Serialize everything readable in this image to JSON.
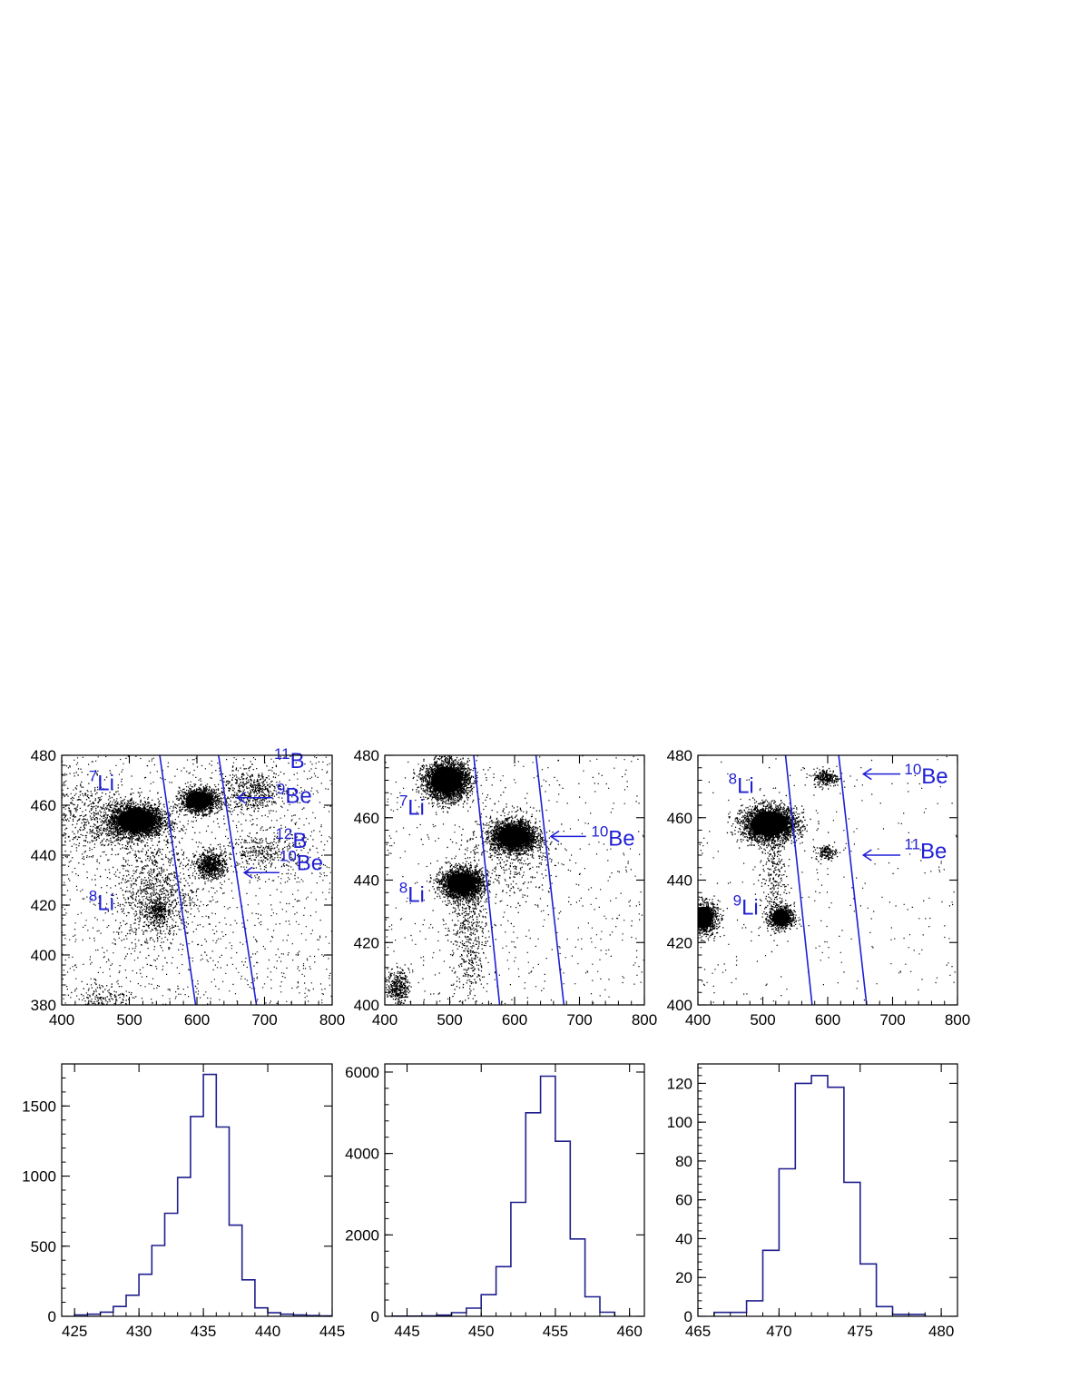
{
  "colors": {
    "cut_line": "#1f1fd6",
    "histogram": "#1f1f8f",
    "points": "#000000",
    "axes": "#000000"
  },
  "chart_data": [
    {
      "type": "scatter",
      "panel": "top-left",
      "xlim": [
        400,
        800
      ],
      "ylim": [
        380,
        480
      ],
      "xticks": [
        400,
        500,
        600,
        700,
        800
      ],
      "yticks": [
        380,
        400,
        420,
        440,
        460,
        480
      ],
      "clusters": [
        {
          "x": 510,
          "y": 454,
          "sx": 20,
          "sy": 3.2,
          "n": 3000,
          "dense": true
        },
        {
          "x": 603,
          "y": 462,
          "sx": 14,
          "sy": 2.4,
          "n": 1400,
          "dense": true
        },
        {
          "x": 620,
          "y": 436,
          "sx": 11,
          "sy": 2.6,
          "n": 700,
          "dense": false
        },
        {
          "x": 680,
          "y": 466,
          "sx": 25,
          "sy": 4,
          "n": 500,
          "dense": false
        },
        {
          "x": 700,
          "y": 442,
          "sx": 30,
          "sy": 4,
          "n": 350,
          "dense": false
        },
        {
          "x": 540,
          "y": 418,
          "sx": 9,
          "sy": 2.5,
          "n": 250,
          "dense": false
        },
        {
          "x": 540,
          "y": 425,
          "sx": 28,
          "sy": 12,
          "n": 900,
          "dense": false
        },
        {
          "x": 460,
          "y": 383,
          "sx": 22,
          "sy": 3,
          "n": 150,
          "dense": false
        },
        {
          "x": 445,
          "y": 455,
          "sx": 40,
          "sy": 8,
          "n": 600,
          "dense": false
        }
      ],
      "background_points": 1400,
      "cut_lines": [
        [
          [
            545,
            480
          ],
          [
            598,
            380
          ]
        ],
        [
          [
            632,
            480
          ],
          [
            688,
            380
          ]
        ]
      ],
      "annotations": [
        {
          "mass": "7",
          "symbol": "Li",
          "x": 440,
          "y": 466
        },
        {
          "mass": "8",
          "symbol": "Li",
          "x": 440,
          "y": 418
        },
        {
          "mass": "11",
          "symbol": "B",
          "x": 714,
          "y": 475
        },
        {
          "mass": "9",
          "symbol": "Be",
          "x": 718,
          "y": 461
        },
        {
          "mass": "12",
          "symbol": "B",
          "x": 716,
          "y": 443
        },
        {
          "mass": "10",
          "symbol": "Be",
          "x": 722,
          "y": 434
        }
      ],
      "arrows": [
        {
          "from": [
            712,
            463
          ],
          "to": [
            660,
            463
          ]
        },
        {
          "from": [
            722,
            433
          ],
          "to": [
            670,
            433
          ]
        }
      ]
    },
    {
      "type": "scatter",
      "panel": "top-middle",
      "xlim": [
        400,
        800
      ],
      "ylim": [
        400,
        480
      ],
      "xticks": [
        400,
        500,
        600,
        700,
        800
      ],
      "yticks": [
        400,
        420,
        440,
        460,
        480
      ],
      "clusters": [
        {
          "x": 495,
          "y": 472,
          "sx": 17,
          "sy": 3,
          "n": 3000,
          "dense": true
        },
        {
          "x": 598,
          "y": 454,
          "sx": 17,
          "sy": 2.4,
          "n": 2600,
          "dense": true
        },
        {
          "x": 518,
          "y": 439,
          "sx": 16,
          "sy": 2.3,
          "n": 2400,
          "dense": true
        },
        {
          "x": 420,
          "y": 406,
          "sx": 8,
          "sy": 2.5,
          "n": 350,
          "dense": false
        },
        {
          "x": 530,
          "y": 425,
          "sx": 14,
          "sy": 14,
          "n": 600,
          "dense": false
        },
        {
          "x": 600,
          "y": 450,
          "sx": 30,
          "sy": 8,
          "n": 400,
          "dense": false
        }
      ],
      "background_points": 600,
      "cut_lines": [
        [
          [
            537,
            480
          ],
          [
            577,
            400
          ]
        ],
        [
          [
            633,
            480
          ],
          [
            676,
            400
          ]
        ]
      ],
      "annotations": [
        {
          "mass": "7",
          "symbol": "Li",
          "x": 422,
          "y": 461
        },
        {
          "mass": "8",
          "symbol": "Li",
          "x": 422,
          "y": 433
        },
        {
          "mass": "10",
          "symbol": "Be",
          "x": 718,
          "y": 451
        }
      ],
      "arrows": [
        {
          "from": [
            710,
            454
          ],
          "to": [
            656,
            454
          ]
        }
      ]
    },
    {
      "type": "scatter",
      "panel": "top-right",
      "xlim": [
        400,
        800
      ],
      "ylim": [
        400,
        480
      ],
      "xticks": [
        400,
        500,
        600,
        700,
        800
      ],
      "yticks": [
        400,
        420,
        440,
        460,
        480
      ],
      "clusters": [
        {
          "x": 510,
          "y": 458,
          "sx": 21,
          "sy": 2.8,
          "n": 2800,
          "dense": true
        },
        {
          "x": 408,
          "y": 428,
          "sx": 11,
          "sy": 2.6,
          "n": 900,
          "dense": true
        },
        {
          "x": 528,
          "y": 428,
          "sx": 10,
          "sy": 1.9,
          "n": 700,
          "dense": true
        },
        {
          "x": 597,
          "y": 473,
          "sx": 10,
          "sy": 1.4,
          "n": 260,
          "dense": false
        },
        {
          "x": 597,
          "y": 449,
          "sx": 8,
          "sy": 1.2,
          "n": 140,
          "dense": false
        },
        {
          "x": 515,
          "y": 441,
          "sx": 10,
          "sy": 8,
          "n": 250,
          "dense": false
        }
      ],
      "background_points": 300,
      "cut_lines": [
        [
          [
            535,
            480
          ],
          [
            576,
            400
          ]
        ],
        [
          [
            617,
            480
          ],
          [
            660,
            400
          ]
        ]
      ],
      "annotations": [
        {
          "mass": "8",
          "symbol": "Li",
          "x": 447,
          "y": 468
        },
        {
          "mass": "9",
          "symbol": "Li",
          "x": 454,
          "y": 429
        },
        {
          "mass": "10",
          "symbol": "Be",
          "x": 718,
          "y": 471
        },
        {
          "mass": "11",
          "symbol": "Be",
          "x": 718,
          "y": 447
        }
      ],
      "arrows": [
        {
          "from": [
            712,
            474
          ],
          "to": [
            655,
            474
          ]
        },
        {
          "from": [
            712,
            448
          ],
          "to": [
            655,
            448
          ]
        }
      ]
    },
    {
      "type": "bar",
      "panel": "bottom-left",
      "histogram": true,
      "xlim": [
        424,
        445
      ],
      "ylim": [
        0,
        1800
      ],
      "xticks": [
        425,
        430,
        435,
        440,
        445
      ],
      "yticks": [
        0,
        500,
        1000,
        1500
      ],
      "bin_edges": [
        425,
        426,
        427,
        428,
        429,
        430,
        431,
        432,
        433,
        434,
        435,
        436,
        437,
        438,
        439,
        440,
        441,
        442,
        443,
        444,
        445
      ],
      "values": [
        10,
        15,
        30,
        70,
        150,
        300,
        505,
        735,
        990,
        1425,
        1725,
        1350,
        650,
        260,
        60,
        25,
        15,
        10,
        5,
        3
      ]
    },
    {
      "type": "bar",
      "panel": "bottom-middle",
      "histogram": true,
      "xlim": [
        443.5,
        461
      ],
      "ylim": [
        0,
        6200
      ],
      "xticks": [
        445,
        450,
        455,
        460
      ],
      "yticks": [
        0,
        2000,
        4000,
        6000
      ],
      "bin_edges": [
        444,
        445,
        446,
        447,
        448,
        449,
        450,
        451,
        452,
        453,
        454,
        455,
        456,
        457,
        458,
        459
      ],
      "values": [
        5,
        5,
        10,
        30,
        90,
        200,
        530,
        1220,
        2800,
        5000,
        5900,
        4300,
        1900,
        480,
        100
      ]
    },
    {
      "type": "bar",
      "panel": "bottom-right",
      "histogram": true,
      "xlim": [
        465,
        481
      ],
      "ylim": [
        0,
        130
      ],
      "xticks": [
        465,
        470,
        475,
        480
      ],
      "yticks": [
        0,
        20,
        40,
        60,
        80,
        100,
        120
      ],
      "bin_edges": [
        466,
        467,
        468,
        469,
        470,
        471,
        472,
        473,
        474,
        475,
        476,
        477,
        478,
        479
      ],
      "values": [
        2,
        2,
        8,
        34,
        76,
        120,
        124,
        118,
        69,
        27,
        5,
        1,
        1
      ]
    }
  ]
}
